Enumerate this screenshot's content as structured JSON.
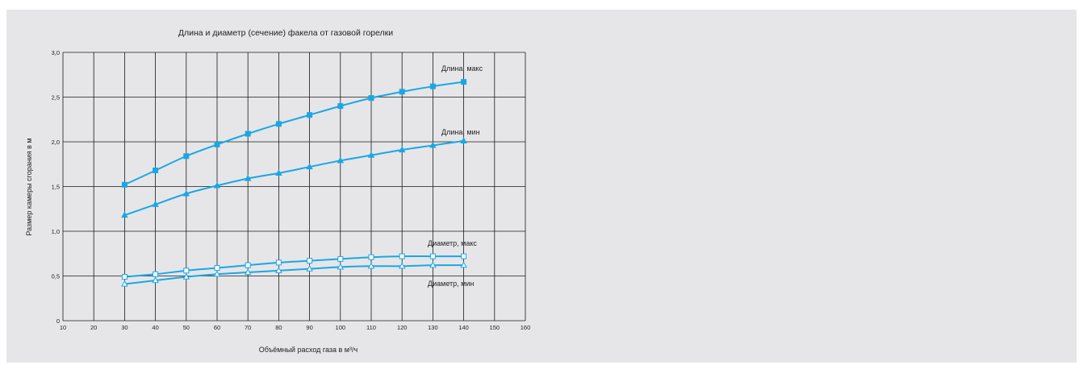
{
  "colors": {
    "panel_bg": "#e6e6e8",
    "line": "#1aa7e6",
    "grid": "#1a1a1a"
  },
  "chart_data": {
    "type": "line",
    "title": "Длина и диаметр (сечение) факела от газовой горелки",
    "xlabel": "Объёмный расход газа в м³/ч",
    "ylabel": "Размер камеры сгорания в м",
    "xlim": [
      10,
      160
    ],
    "ylim": [
      0,
      3.0
    ],
    "x_ticks": [
      10,
      20,
      30,
      40,
      50,
      60,
      70,
      80,
      90,
      100,
      110,
      120,
      130,
      140,
      150,
      160
    ],
    "x_tick_labels": [
      "10",
      "20",
      "30",
      "40",
      "50",
      "60",
      "70",
      "80",
      "90",
      "100",
      "110",
      "120",
      "130",
      "140",
      "150",
      "160"
    ],
    "y_ticks": [
      0,
      0.5,
      1.0,
      1.5,
      2.0,
      2.5,
      3.0
    ],
    "y_tick_labels": [
      "0",
      "0,5",
      "1,0",
      "1,5",
      "2,0",
      "2,5",
      "3,0"
    ],
    "grid": true,
    "series": [
      {
        "name": "Длина, макс",
        "marker": "square-filled",
        "x": [
          30,
          40,
          50,
          60,
          70,
          80,
          90,
          100,
          110,
          120,
          130,
          140
        ],
        "y": [
          1.52,
          1.68,
          1.84,
          1.97,
          2.09,
          2.2,
          2.3,
          2.4,
          2.49,
          2.56,
          2.62,
          2.67
        ]
      },
      {
        "name": "Длина, мин",
        "marker": "triangle-filled",
        "x": [
          30,
          40,
          50,
          60,
          70,
          80,
          90,
          100,
          110,
          120,
          130,
          140
        ],
        "y": [
          1.18,
          1.3,
          1.42,
          1.51,
          1.59,
          1.65,
          1.72,
          1.79,
          1.85,
          1.91,
          1.96,
          2.01
        ]
      },
      {
        "name": "Диаметр, макс",
        "marker": "square-open",
        "x": [
          30,
          40,
          50,
          60,
          70,
          80,
          90,
          100,
          110,
          120,
          130,
          140
        ],
        "y": [
          0.49,
          0.52,
          0.56,
          0.59,
          0.62,
          0.65,
          0.67,
          0.69,
          0.71,
          0.72,
          0.72,
          0.72
        ]
      },
      {
        "name": "Диаметр, мин",
        "marker": "triangle-open",
        "x": [
          30,
          40,
          50,
          60,
          70,
          80,
          90,
          100,
          110,
          120,
          130,
          140
        ],
        "y": [
          0.41,
          0.45,
          0.49,
          0.52,
          0.54,
          0.56,
          0.58,
          0.6,
          0.61,
          0.61,
          0.62,
          0.62
        ]
      }
    ]
  }
}
